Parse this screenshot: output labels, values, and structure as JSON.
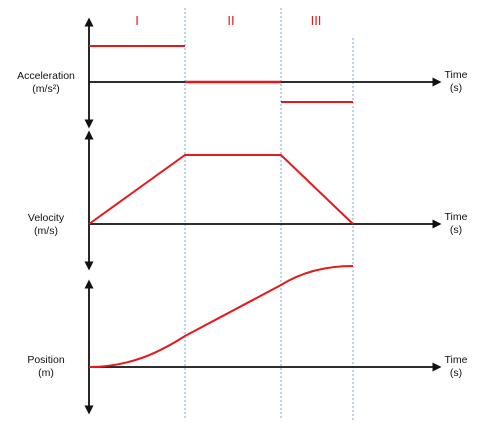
{
  "phases": [
    "I",
    "II",
    "III"
  ],
  "colors": {
    "curve": "#e31a1c",
    "axis": "#111111",
    "divider": "#6fa8dc"
  },
  "graphs": [
    {
      "id": "acceleration",
      "ylabel_line1": "Acceleration",
      "ylabel_line2": "(m/s²)",
      "xlabel_line1": "Time",
      "xlabel_line2": "(s)"
    },
    {
      "id": "velocity",
      "ylabel_line1": "Velocity",
      "ylabel_line2": "(m/s)",
      "xlabel_line1": "Time",
      "xlabel_line2": "(s)"
    },
    {
      "id": "position",
      "ylabel_line1": "Position",
      "ylabel_line2": "(m)",
      "xlabel_line1": "Time",
      "xlabel_line2": "(s)"
    }
  ]
}
